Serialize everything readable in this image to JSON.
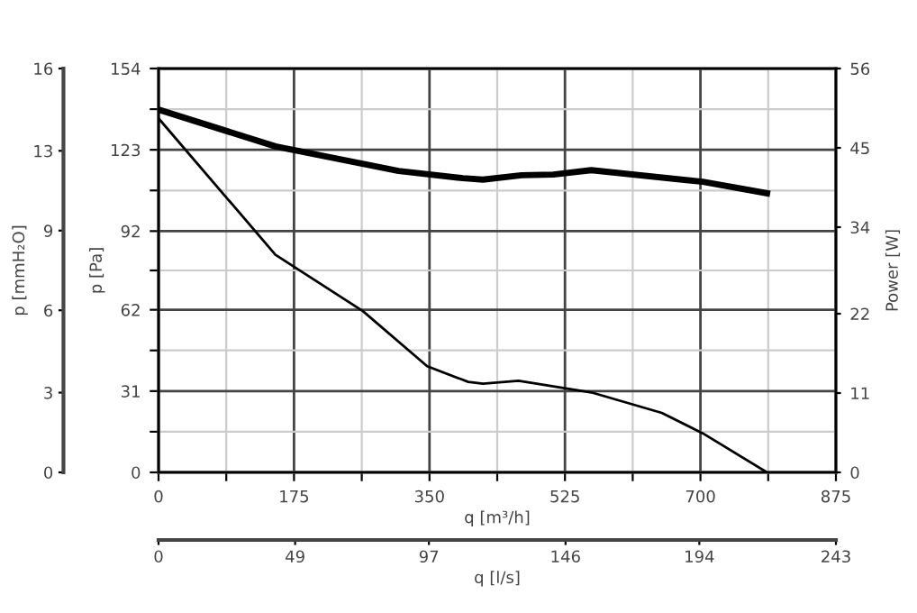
{
  "chart_data": {
    "type": "line",
    "xlabel": "q [m³/h]",
    "ylabel": "p [Pa]",
    "y2label": "Power [W]",
    "y3label": "p [mmH₂O]",
    "x2label": "q [l/s]",
    "xlim": [
      0,
      875
    ],
    "xticks": [
      0,
      {
        "value": 87.5,
        "label": null
      },
      175,
      {
        "value": 262.5,
        "label": null
      },
      350,
      {
        "value": 437.5,
        "label": null
      },
      525,
      {
        "value": 612.5,
        "label": null
      },
      700,
      {
        "value": 787.5,
        "label": null
      },
      875
    ],
    "ylim": [
      0,
      154
    ],
    "yticks": [
      0,
      {
        "value": 15.5,
        "label": null
      },
      31,
      {
        "value": 46.5,
        "label": null
      },
      62,
      {
        "value": 77,
        "label": null
      },
      92,
      {
        "value": 107.5,
        "label": null
      },
      123,
      {
        "value": 138.5,
        "label": null
      },
      154
    ],
    "y2lim": [
      0,
      56
    ],
    "y2ticks": [
      0,
      11,
      22,
      34,
      45,
      56
    ],
    "y3lim": [
      0,
      15.7
    ],
    "y3ticks": [
      {
        "value": 0,
        "label": "0"
      },
      {
        "value": 3.1,
        "label": "3"
      },
      {
        "value": 6.3,
        "label": "6"
      },
      {
        "value": 9.4,
        "label": "9"
      },
      {
        "value": 12.5,
        "label": "13"
      },
      {
        "value": 15.7,
        "label": "16"
      }
    ],
    "x2lim": [
      0,
      243
    ],
    "x2ticks": [
      0,
      49,
      97,
      146,
      194,
      243
    ],
    "grid": true,
    "marker": "none",
    "line_style": "solid",
    "series": [
      {
        "color": "#000000",
        "axis": "y",
        "x": [
          0,
          151,
          264,
          347,
          400,
          419,
          465,
          559,
          650,
          703,
          786
        ],
        "values": [
          135,
          83,
          61.5,
          40.5,
          34.5,
          33.8,
          34.9,
          30.5,
          22.7,
          14.9,
          0
        ]
      },
      {
        "color": "#000000",
        "axis": "y2",
        "x": [
          0,
          151,
          310,
          393,
          419,
          469,
          510,
          559,
          703,
          786
        ],
        "values": [
          50.3,
          45.2,
          41.8,
          40.8,
          40.6,
          41.2,
          41.3,
          41.9,
          40.3,
          38.7
        ]
      }
    ]
  }
}
